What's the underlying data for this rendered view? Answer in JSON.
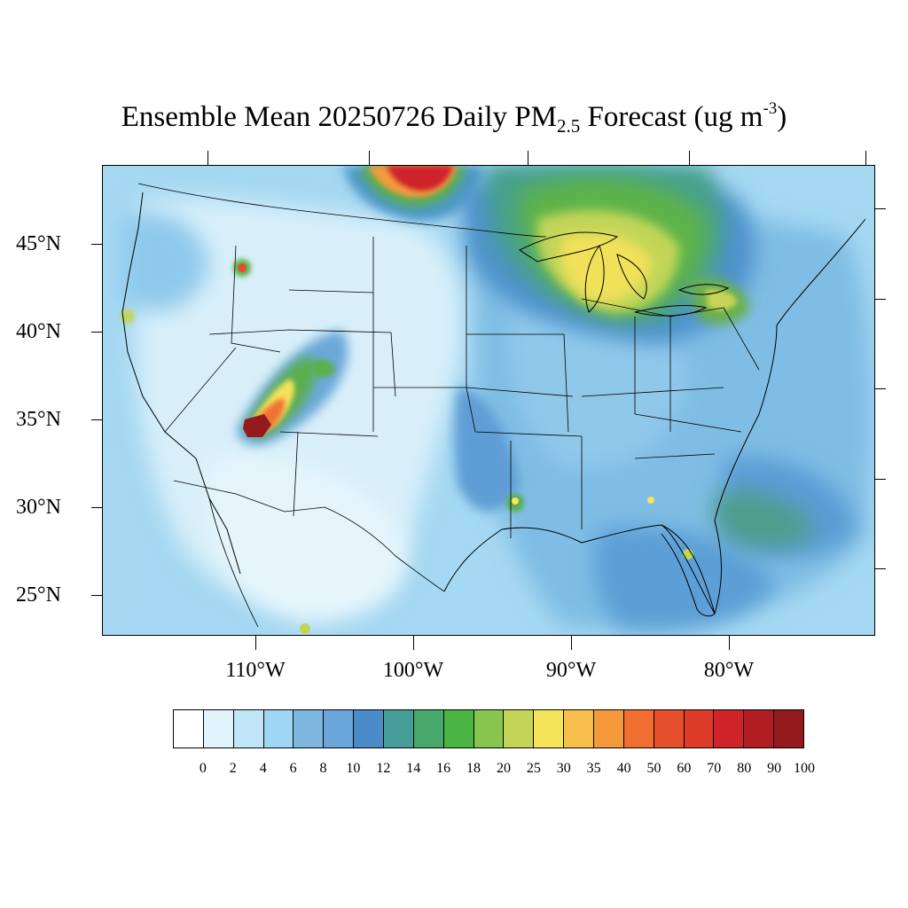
{
  "title": {
    "prefix": "Ensemble Mean 20250726 Daily PM",
    "subscript": "2.5",
    "middle": " Forecast (ug m",
    "superscript": "-3",
    "suffix": ")"
  },
  "map": {
    "region": "CONUS",
    "lat_labels": [
      "45°N",
      "40°N",
      "35°N",
      "30°N",
      "25°N"
    ],
    "lon_labels": [
      "110°W",
      "100°W",
      "90°W",
      "80°W"
    ],
    "background_color": "#a5d8f2"
  },
  "colorbar": {
    "levels": [
      "0",
      "2",
      "4",
      "6",
      "8",
      "10",
      "12",
      "14",
      "16",
      "18",
      "20",
      "25",
      "30",
      "35",
      "40",
      "50",
      "60",
      "70",
      "80",
      "90",
      "100"
    ],
    "colors": [
      "#ffffff",
      "#e1f3fb",
      "#c1e6f7",
      "#9fd6f3",
      "#7eb7e0",
      "#6aa6da",
      "#4a8bc8",
      "#479d97",
      "#48a76a",
      "#4bb543",
      "#87c54f",
      "#c3d556",
      "#f6e55a",
      "#f6bf4b",
      "#f59a3c",
      "#f16e31",
      "#e54f2c",
      "#de3b2a",
      "#cf2229",
      "#b21c23",
      "#951a1d"
    ]
  }
}
